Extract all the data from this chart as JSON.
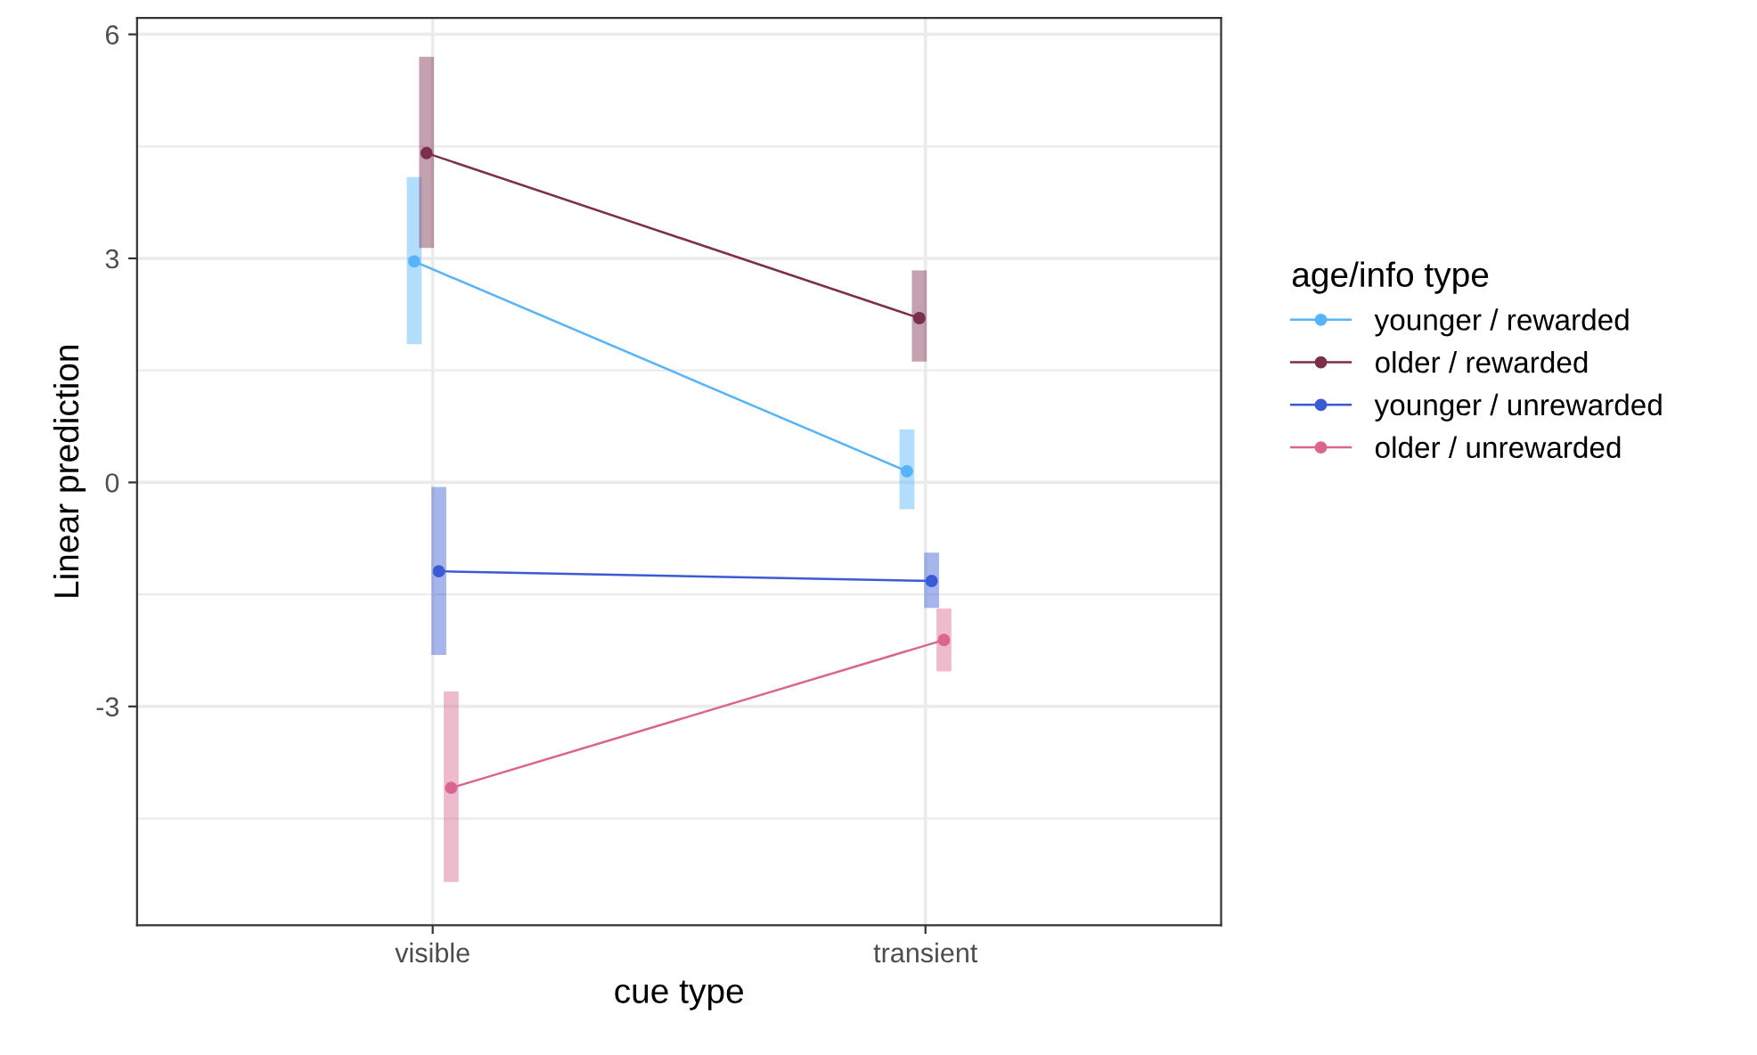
{
  "chart_data": {
    "type": "line",
    "xlabel": "cue type",
    "ylabel": "Linear prediction",
    "legend_title": "age/info type",
    "categories": [
      "visible",
      "transient"
    ],
    "ylim": [
      -5.93,
      6.22
    ],
    "yticks": [
      -3,
      0,
      3,
      6
    ],
    "grid": true,
    "legend": "right",
    "marker": "circle",
    "line_style": "solid",
    "series": [
      {
        "name": "younger / rewarded",
        "color": "#56b4f9",
        "values": [
          2.96,
          0.15
        ],
        "errors": [
          [
            1.85,
            4.09
          ],
          [
            -0.36,
            0.71
          ]
        ]
      },
      {
        "name": "older / rewarded",
        "color": "#7b2f4b",
        "values": [
          4.41,
          2.2
        ],
        "errors": [
          [
            3.14,
            5.7
          ],
          [
            1.62,
            2.84
          ]
        ]
      },
      {
        "name": "younger / unrewarded",
        "color": "#3a5bd3",
        "values": [
          -1.19,
          -1.32
        ],
        "errors": [
          [
            -2.31,
            -0.06
          ],
          [
            -1.68,
            -0.94
          ]
        ]
      },
      {
        "name": "older / unrewarded",
        "color": "#da6690",
        "values": [
          -4.09,
          -2.11
        ],
        "errors": [
          [
            -5.35,
            -2.8
          ],
          [
            -2.53,
            -1.69
          ]
        ]
      }
    ]
  }
}
